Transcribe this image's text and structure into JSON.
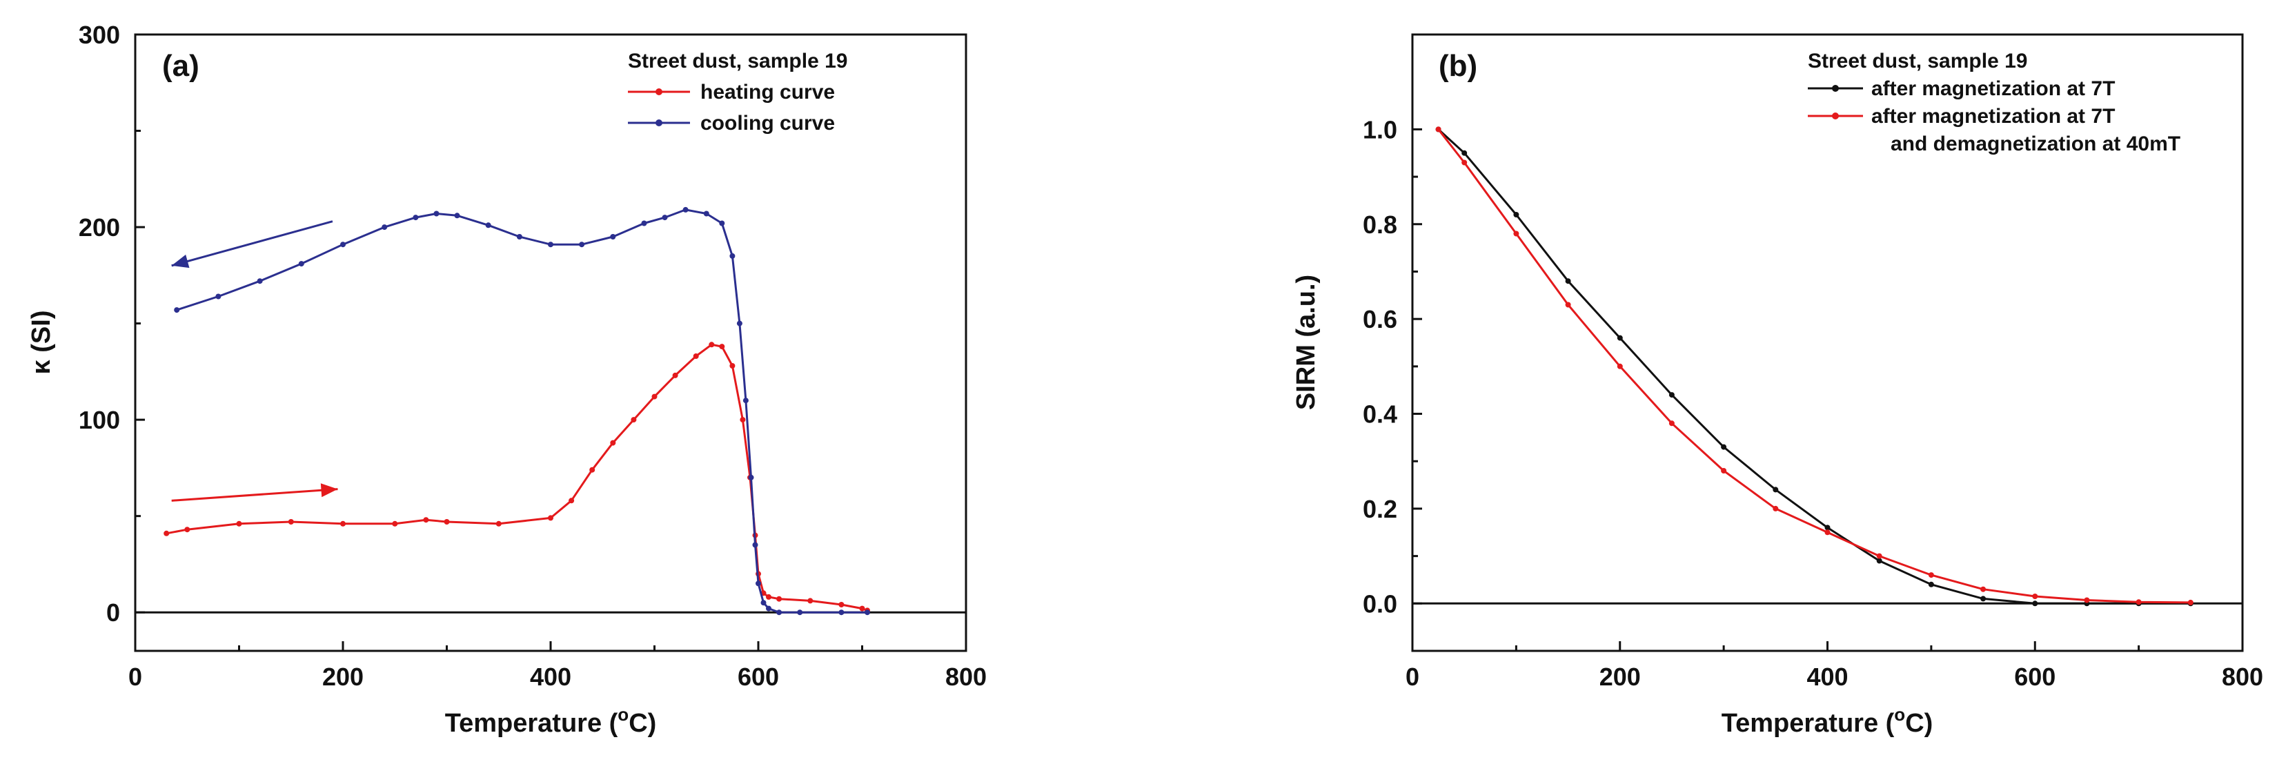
{
  "colors": {
    "red": "#e41a1c",
    "blue": "#2b2f8f",
    "black": "#111111"
  },
  "chart_data": [
    {
      "type": "line",
      "panel_label": "(a)",
      "xlabel_prefix": "Temperature (",
      "xlabel_sup": "o",
      "xlabel_suffix": "C)",
      "ylabel": "κ (SI)",
      "xlim": [
        0,
        800
      ],
      "ylim": [
        -20,
        300
      ],
      "xticks": [
        "0",
        "200",
        "400",
        "600",
        "800"
      ],
      "yticks": [
        "0",
        "100",
        "200",
        "300"
      ],
      "xtick_values": [
        0,
        200,
        400,
        600,
        800
      ],
      "ytick_values": [
        0,
        100,
        200,
        300
      ],
      "zero_line": 0,
      "legend": {
        "title": "Street dust, sample 19",
        "entries": [
          {
            "label": "heating curve",
            "color": "#e41a1c"
          },
          {
            "label": "cooling curve",
            "color": "#2b2f8f"
          }
        ]
      },
      "annotations": [
        {
          "type": "arrow",
          "from": [
            190,
            203
          ],
          "to": [
            35,
            180
          ],
          "color": "#2b2f8f"
        },
        {
          "type": "arrow",
          "from": [
            35,
            58
          ],
          "to": [
            195,
            64
          ],
          "color": "#e41a1c"
        }
      ],
      "series": [
        {
          "name": "heating curve",
          "color": "#e41a1c",
          "x": [
            30,
            50,
            100,
            150,
            200,
            250,
            280,
            300,
            350,
            400,
            420,
            440,
            460,
            480,
            500,
            520,
            540,
            555,
            565,
            575,
            585,
            592,
            597,
            600,
            605,
            610,
            620,
            650,
            680,
            700,
            705
          ],
          "y": [
            41,
            43,
            46,
            47,
            46,
            46,
            48,
            47,
            46,
            49,
            58,
            74,
            88,
            100,
            112,
            123,
            133,
            139,
            138,
            128,
            100,
            70,
            40,
            20,
            10,
            8,
            7,
            6,
            4,
            2,
            1
          ]
        },
        {
          "name": "cooling curve",
          "color": "#2b2f8f",
          "x": [
            40,
            80,
            120,
            160,
            200,
            240,
            270,
            290,
            310,
            340,
            370,
            400,
            430,
            460,
            490,
            510,
            530,
            550,
            565,
            575,
            582,
            588,
            593,
            597,
            600,
            605,
            610,
            620,
            640,
            680,
            705
          ],
          "y": [
            157,
            164,
            172,
            181,
            191,
            200,
            205,
            207,
            206,
            201,
            195,
            191,
            191,
            195,
            202,
            205,
            209,
            207,
            202,
            185,
            150,
            110,
            70,
            35,
            15,
            5,
            2,
            0,
            0,
            0,
            0
          ]
        }
      ]
    },
    {
      "type": "line",
      "panel_label": "(b)",
      "xlabel_prefix": "Temperature (",
      "xlabel_sup": "o",
      "xlabel_suffix": "C)",
      "ylabel": "SIRM (a.u.)",
      "xlim": [
        0,
        800
      ],
      "ylim": [
        -0.1,
        1.2
      ],
      "xticks": [
        "0",
        "200",
        "400",
        "600",
        "800"
      ],
      "yticks": [
        "0.0",
        "0.2",
        "0.4",
        "0.6",
        "0.8",
        "1.0"
      ],
      "xtick_values": [
        0,
        200,
        400,
        600,
        800
      ],
      "ytick_values": [
        0.0,
        0.2,
        0.4,
        0.6,
        0.8,
        1.0
      ],
      "zero_line": 0,
      "legend": {
        "title": "Street dust, sample 19",
        "entries": [
          {
            "label": "after magnetization at 7T",
            "color": "#111111"
          },
          {
            "label": "after magnetization at 7T",
            "label2": "and demagnetization at 40mT",
            "color": "#e41a1c"
          }
        ]
      },
      "series": [
        {
          "name": "after magnetization at 7T",
          "color": "#111111",
          "x": [
            25,
            50,
            100,
            150,
            200,
            250,
            300,
            350,
            400,
            450,
            500,
            550,
            600,
            650,
            700,
            750
          ],
          "y": [
            1.0,
            0.95,
            0.82,
            0.68,
            0.56,
            0.44,
            0.33,
            0.24,
            0.16,
            0.09,
            0.04,
            0.01,
            0.0,
            0.0,
            0.0,
            0.0
          ]
        },
        {
          "name": "after magnetization at 7T and demagnetization at 40mT",
          "color": "#e41a1c",
          "x": [
            25,
            50,
            100,
            150,
            200,
            250,
            300,
            350,
            400,
            450,
            500,
            550,
            600,
            650,
            700,
            750
          ],
          "y": [
            1.0,
            0.93,
            0.78,
            0.63,
            0.5,
            0.38,
            0.28,
            0.2,
            0.15,
            0.1,
            0.06,
            0.03,
            0.015,
            0.007,
            0.003,
            0.002
          ]
        }
      ]
    }
  ]
}
